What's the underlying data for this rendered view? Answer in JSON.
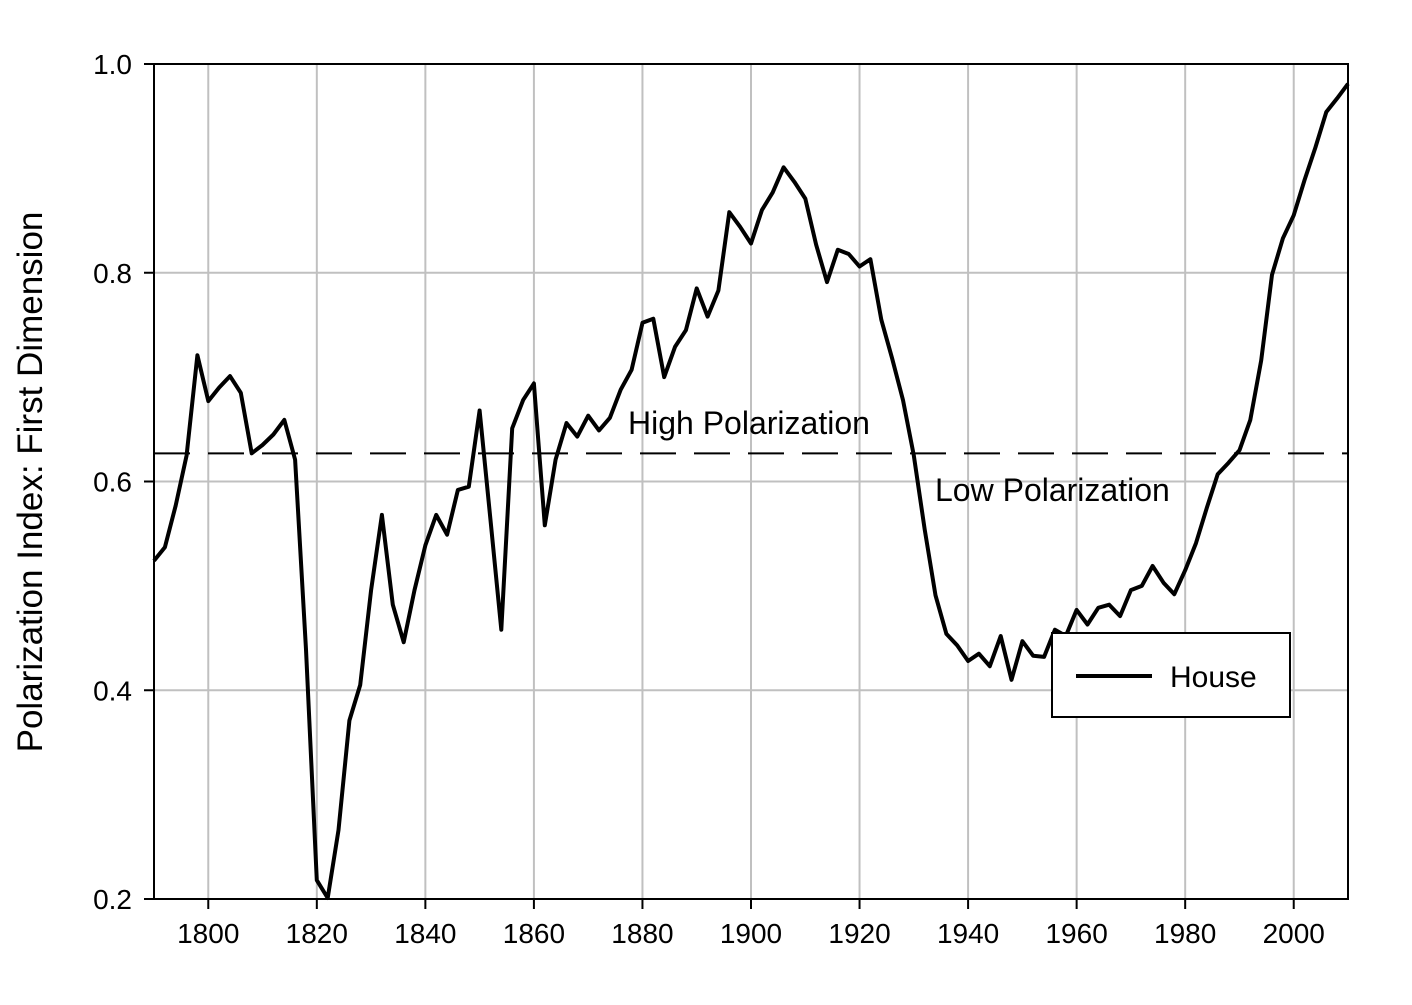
{
  "chart_data": {
    "type": "line",
    "title": "",
    "xlabel": "",
    "ylabel": "Polarization Index: First Dimension",
    "xlim": [
      1790,
      2010
    ],
    "ylim": [
      0.2,
      1.0
    ],
    "xticks": [
      1800,
      1820,
      1840,
      1860,
      1880,
      1900,
      1920,
      1940,
      1960,
      1980,
      2000
    ],
    "yticks": [
      "0.2",
      "0.4",
      "0.6",
      "0.8",
      "1.0"
    ],
    "grid": true,
    "legend_placement": "lower-right",
    "threshold": {
      "value": 0.627,
      "style": "dashed"
    },
    "annotations": [
      "High Polarization",
      "Low Polarization"
    ],
    "series": [
      {
        "name": "House",
        "color": "#000000",
        "x": [
          1790,
          1792,
          1794,
          1796,
          1798,
          1800,
          1802,
          1804,
          1806,
          1808,
          1810,
          1812,
          1814,
          1816,
          1818,
          1820,
          1822,
          1824,
          1826,
          1828,
          1830,
          1832,
          1834,
          1836,
          1838,
          1840,
          1842,
          1844,
          1846,
          1848,
          1850,
          1852,
          1854,
          1856,
          1858,
          1860,
          1862,
          1864,
          1866,
          1868,
          1870,
          1872,
          1874,
          1876,
          1878,
          1880,
          1882,
          1884,
          1886,
          1888,
          1890,
          1892,
          1894,
          1896,
          1898,
          1900,
          1902,
          1904,
          1906,
          1908,
          1910,
          1912,
          1914,
          1916,
          1918,
          1920,
          1922,
          1924,
          1926,
          1928,
          1930,
          1932,
          1934,
          1936,
          1938,
          1940,
          1942,
          1944,
          1946,
          1948,
          1950,
          1952,
          1954,
          1956,
          1958,
          1960,
          1962,
          1964,
          1966,
          1968,
          1970,
          1972,
          1974,
          1976,
          1978,
          1980,
          1982,
          1984,
          1986,
          1988,
          1990,
          1992,
          1994,
          1996,
          1998,
          2000,
          2002,
          2004,
          2006,
          2008,
          2010
        ],
        "y": [
          0.524,
          0.537,
          0.577,
          0.625,
          0.721,
          0.677,
          0.69,
          0.701,
          0.685,
          0.627,
          0.635,
          0.645,
          0.659,
          0.621,
          0.439,
          0.218,
          0.201,
          0.266,
          0.371,
          0.405,
          0.496,
          0.568,
          0.482,
          0.446,
          0.496,
          0.539,
          0.568,
          0.549,
          0.592,
          0.595,
          0.668,
          0.563,
          0.458,
          0.651,
          0.678,
          0.694,
          0.558,
          0.621,
          0.656,
          0.643,
          0.663,
          0.649,
          0.661,
          0.688,
          0.707,
          0.752,
          0.756,
          0.7,
          0.729,
          0.745,
          0.785,
          0.758,
          0.783,
          0.858,
          0.844,
          0.828,
          0.86,
          0.877,
          0.901,
          0.887,
          0.871,
          0.827,
          0.791,
          0.822,
          0.818,
          0.806,
          0.813,
          0.755,
          0.718,
          0.678,
          0.625,
          0.554,
          0.491,
          0.454,
          0.443,
          0.428,
          0.435,
          0.423,
          0.452,
          0.41,
          0.447,
          0.433,
          0.432,
          0.458,
          0.452,
          0.477,
          0.463,
          0.479,
          0.482,
          0.471,
          0.496,
          0.5,
          0.519,
          0.503,
          0.492,
          0.515,
          0.541,
          0.575,
          0.607,
          0.618,
          0.63,
          0.659,
          0.716,
          0.798,
          0.833,
          0.855,
          0.889,
          0.92,
          0.954,
          0.967,
          0.981
        ]
      }
    ]
  }
}
